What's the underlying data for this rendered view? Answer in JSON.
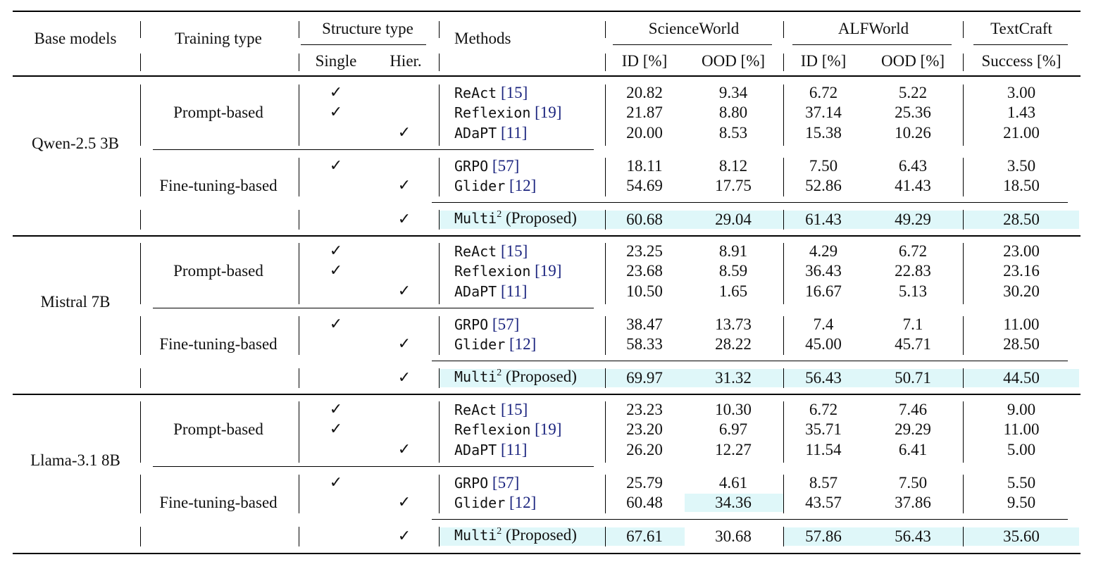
{
  "headers": {
    "base_models": "Base models",
    "training_type": "Training type",
    "structure_type": "Structure type",
    "single": "Single",
    "hier": "Hier.",
    "methods": "Methods",
    "scienceworld": "ScienceWorld",
    "alfworld": "ALFWorld",
    "textcraft": "TextCraft",
    "sw_id": "ID [%]",
    "sw_ood": "OOD [%]",
    "alf_id": "ID [%]",
    "alf_ood": "OOD [%]",
    "tc_success": "Success [%]"
  },
  "check_mark": "✓",
  "highlight_color": "#dff7f9",
  "groups": [
    {
      "model": "Qwen-2.5 3B",
      "prompt_label": "Prompt-based",
      "ft_label": "Fine-tuning-based",
      "rows": [
        {
          "method": "ReAct",
          "cite": "[15]",
          "sup": "",
          "suffix": "",
          "structure": "single",
          "values": [
            "20.82",
            "9.34",
            "6.72",
            "5.22",
            "3.00"
          ]
        },
        {
          "method": "Reflexion",
          "cite": "[19]",
          "sup": "",
          "suffix": "",
          "structure": "single",
          "values": [
            "21.87",
            "8.80",
            "37.14",
            "25.36",
            "1.43"
          ]
        },
        {
          "method": "ADaPT",
          "cite": "[11]",
          "sup": "",
          "suffix": "",
          "structure": "hier",
          "values": [
            "20.00",
            "8.53",
            "15.38",
            "10.26",
            "21.00"
          ]
        },
        {
          "method": "GRPO",
          "cite": "[57]",
          "sup": "",
          "suffix": "",
          "structure": "single",
          "values": [
            "18.11",
            "8.12",
            "7.50",
            "6.43",
            "3.50"
          ]
        },
        {
          "method": "Glider",
          "cite": "[12]",
          "sup": "",
          "suffix": "",
          "structure": "hier",
          "values": [
            "54.69",
            "17.75",
            "52.86",
            "41.43",
            "18.50"
          ]
        },
        {
          "method": "Multi",
          "cite": "",
          "sup": "2",
          "suffix": "(Proposed)",
          "structure": "hier",
          "values": [
            "60.68",
            "29.04",
            "61.43",
            "49.29",
            "28.50"
          ]
        }
      ]
    },
    {
      "model": "Mistral 7B",
      "prompt_label": "Prompt-based",
      "ft_label": "Fine-tuning-based",
      "rows": [
        {
          "method": "ReAct",
          "cite": "[15]",
          "sup": "",
          "suffix": "",
          "structure": "single",
          "values": [
            "23.25",
            "8.91",
            "4.29",
            "6.72",
            "23.00"
          ]
        },
        {
          "method": "Reflexion",
          "cite": "[19]",
          "sup": "",
          "suffix": "",
          "structure": "single",
          "values": [
            "23.68",
            "8.59",
            "36.43",
            "22.83",
            "23.16"
          ]
        },
        {
          "method": "ADaPT",
          "cite": "[11]",
          "sup": "",
          "suffix": "",
          "structure": "hier",
          "values": [
            "10.50",
            "1.65",
            "16.67",
            "5.13",
            "30.20"
          ]
        },
        {
          "method": "GRPO",
          "cite": "[57]",
          "sup": "",
          "suffix": "",
          "structure": "single",
          "values": [
            "38.47",
            "13.73",
            "7.4",
            "7.1",
            "11.00"
          ]
        },
        {
          "method": "Glider",
          "cite": "[12]",
          "sup": "",
          "suffix": "",
          "structure": "hier",
          "values": [
            "58.33",
            "28.22",
            "45.00",
            "45.71",
            "28.50"
          ]
        },
        {
          "method": "Multi",
          "cite": "",
          "sup": "2",
          "suffix": "(Proposed)",
          "structure": "hier",
          "values": [
            "69.97",
            "31.32",
            "56.43",
            "50.71",
            "44.50"
          ]
        }
      ]
    },
    {
      "model": "Llama-3.1 8B",
      "prompt_label": "Prompt-based",
      "ft_label": "Fine-tuning-based",
      "rows": [
        {
          "method": "ReAct",
          "cite": "[15]",
          "sup": "",
          "suffix": "",
          "structure": "single",
          "values": [
            "23.23",
            "10.30",
            "6.72",
            "7.46",
            "9.00"
          ]
        },
        {
          "method": "Reflexion",
          "cite": "[19]",
          "sup": "",
          "suffix": "",
          "structure": "single",
          "values": [
            "23.20",
            "6.97",
            "35.71",
            "29.29",
            "11.00"
          ]
        },
        {
          "method": "ADaPT",
          "cite": "[11]",
          "sup": "",
          "suffix": "",
          "structure": "hier",
          "values": [
            "26.20",
            "12.27",
            "11.54",
            "6.41",
            "5.00"
          ]
        },
        {
          "method": "GRPO",
          "cite": "[57]",
          "sup": "",
          "suffix": "",
          "structure": "single",
          "values": [
            "25.79",
            "4.61",
            "8.57",
            "7.50",
            "5.50"
          ]
        },
        {
          "method": "Glider",
          "cite": "[12]",
          "sup": "",
          "suffix": "",
          "structure": "hier",
          "values": [
            "60.48",
            "34.36",
            "43.57",
            "37.86",
            "9.50"
          ]
        },
        {
          "method": "Multi",
          "cite": "",
          "sup": "2",
          "suffix": "(Proposed)",
          "structure": "hier",
          "values": [
            "67.61",
            "30.68",
            "57.86",
            "56.43",
            "35.60"
          ]
        }
      ]
    }
  ]
}
